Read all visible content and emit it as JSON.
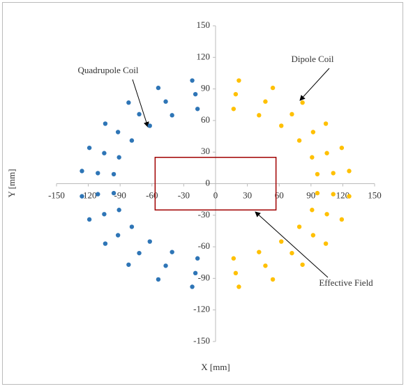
{
  "chart_data": {
    "type": "scatter",
    "x_label": "X [mm]",
    "y_label": "Y [mm]",
    "xlim": [
      -150,
      150
    ],
    "ylim": [
      -150,
      150
    ],
    "xticks": [
      -150,
      -120,
      -90,
      -60,
      -30,
      0,
      30,
      60,
      90,
      120,
      150
    ],
    "yticks": [
      -150,
      -120,
      -90,
      -60,
      -30,
      0,
      30,
      60,
      90,
      120,
      150
    ],
    "series": [
      {
        "name": "Dipole Coil",
        "color": "#ffc000",
        "x": [
          17,
          41,
          62,
          79,
          91,
          96,
          96,
          91,
          79,
          62,
          41,
          17,
          19,
          47,
          72,
          92,
          105,
          111,
          111,
          105,
          92,
          72,
          47,
          19,
          22,
          54,
          82,
          104,
          119,
          126,
          126,
          119,
          104,
          82,
          54,
          22
        ],
        "y": [
          71,
          65,
          55,
          41,
          25,
          9,
          -9,
          -25,
          -41,
          -55,
          -65,
          -71,
          85,
          78,
          66,
          49,
          29,
          10,
          -10,
          -29,
          -49,
          -66,
          -78,
          -85,
          98,
          91,
          77,
          57,
          34,
          12,
          -12,
          -34,
          -57,
          -77,
          -91,
          -98
        ]
      },
      {
        "name": "Quadrupole Coil",
        "color": "#2e75b6",
        "x": [
          -17,
          -41,
          -62,
          -79,
          -91,
          -96,
          -96,
          -91,
          -79,
          -62,
          -41,
          -17,
          -19,
          -47,
          -72,
          -92,
          -105,
          -111,
          -111,
          -105,
          -92,
          -72,
          -47,
          -19,
          -22,
          -54,
          -82,
          -104,
          -119,
          -126,
          -126,
          -119,
          -104,
          -82,
          -54,
          -22
        ],
        "y": [
          71,
          65,
          55,
          41,
          25,
          9,
          -9,
          -25,
          -41,
          -55,
          -65,
          -71,
          85,
          78,
          66,
          49,
          29,
          10,
          -10,
          -29,
          -49,
          -66,
          -78,
          -85,
          98,
          91,
          77,
          57,
          34,
          12,
          -12,
          -34,
          -57,
          -77,
          -91,
          -98
        ]
      }
    ],
    "region": {
      "name": "Effective Field",
      "color": "#a00000",
      "x": [
        -57,
        57
      ],
      "y": [
        -25,
        25
      ]
    }
  }
}
